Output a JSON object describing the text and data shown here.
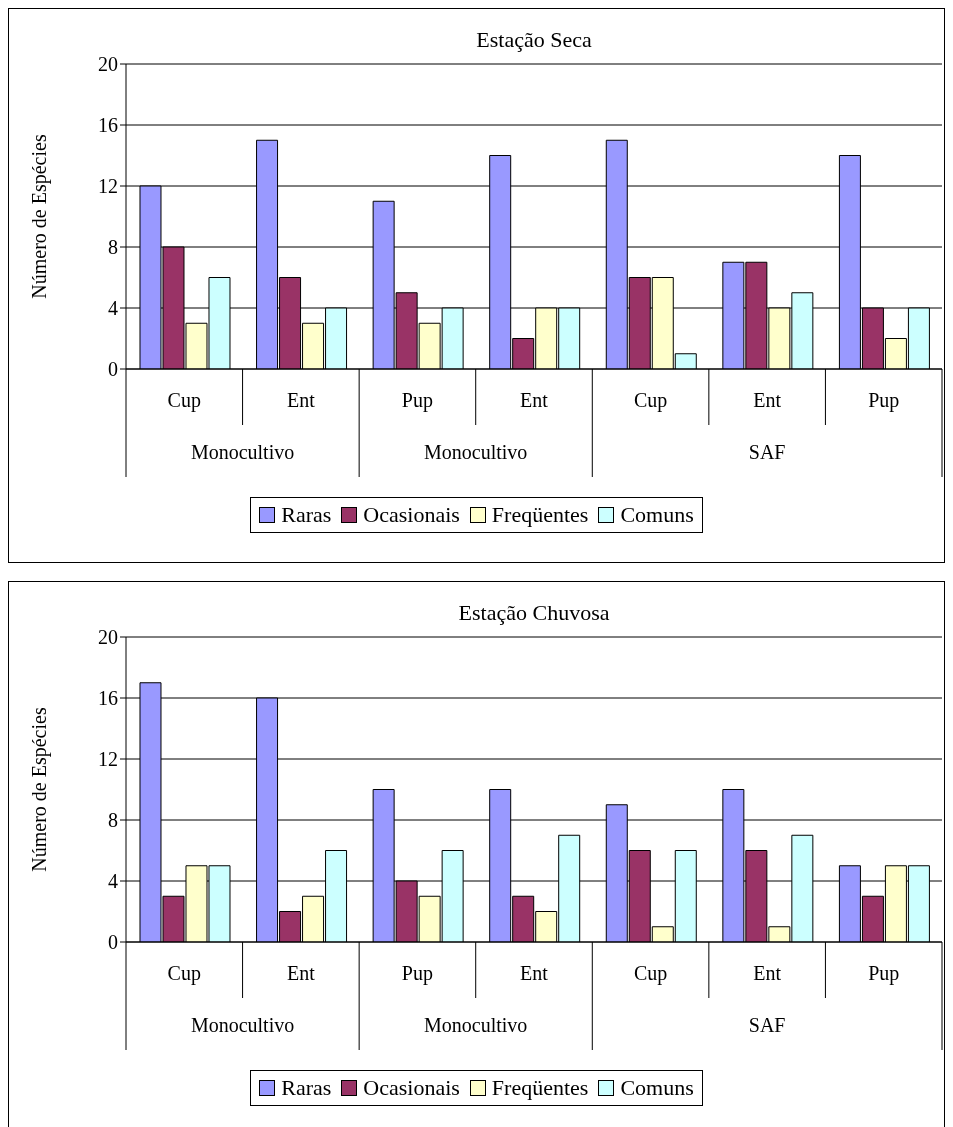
{
  "chart_data": [
    {
      "type": "bar",
      "title": "Estação Seca",
      "ylabel": "Número de Espécies",
      "categories": [
        "Cup",
        "Ent",
        "Pup",
        "Ent",
        "Cup",
        "Ent",
        "Pup"
      ],
      "annotations": [
        "Monocultivo",
        "Monocultivo",
        "SAF"
      ],
      "ylim": [
        0,
        20
      ],
      "yticks": [
        0,
        4,
        8,
        12,
        16,
        20
      ],
      "grid": "y",
      "legend": "bottom",
      "series": [
        {
          "name": "Raras",
          "color": "#9999ff",
          "values": [
            12,
            15,
            11,
            14,
            15,
            7,
            14
          ]
        },
        {
          "name": "Ocasionais",
          "color": "#993366",
          "values": [
            8,
            6,
            5,
            2,
            6,
            7,
            4
          ]
        },
        {
          "name": "Freqüentes",
          "color": "#ffffcc",
          "values": [
            3,
            3,
            3,
            4,
            6,
            4,
            2
          ]
        },
        {
          "name": "Comuns",
          "color": "#ccffff",
          "values": [
            6,
            4,
            4,
            4,
            1,
            5,
            4
          ]
        }
      ]
    },
    {
      "type": "bar",
      "title": "Estação Chuvosa",
      "ylabel": "Número de Espécies",
      "categories": [
        "Cup",
        "Ent",
        "Pup",
        "Ent",
        "Cup",
        "Ent",
        "Pup"
      ],
      "annotations": [
        "Monocultivo",
        "Monocultivo",
        "SAF"
      ],
      "ylim": [
        0,
        20
      ],
      "yticks": [
        0,
        4,
        8,
        12,
        16,
        20
      ],
      "grid": "y",
      "legend": "bottom",
      "series": [
        {
          "name": "Raras",
          "color": "#9999ff",
          "values": [
            17,
            16,
            10,
            10,
            9,
            10,
            5
          ]
        },
        {
          "name": "Ocasionais",
          "color": "#993366",
          "values": [
            3,
            2,
            4,
            3,
            6,
            6,
            3
          ]
        },
        {
          "name": "Freqüentes",
          "color": "#ffffcc",
          "values": [
            5,
            3,
            3,
            2,
            1,
            1,
            5
          ]
        },
        {
          "name": "Comuns",
          "color": "#ccffff",
          "values": [
            5,
            6,
            6,
            7,
            6,
            7,
            5
          ]
        }
      ]
    }
  ]
}
